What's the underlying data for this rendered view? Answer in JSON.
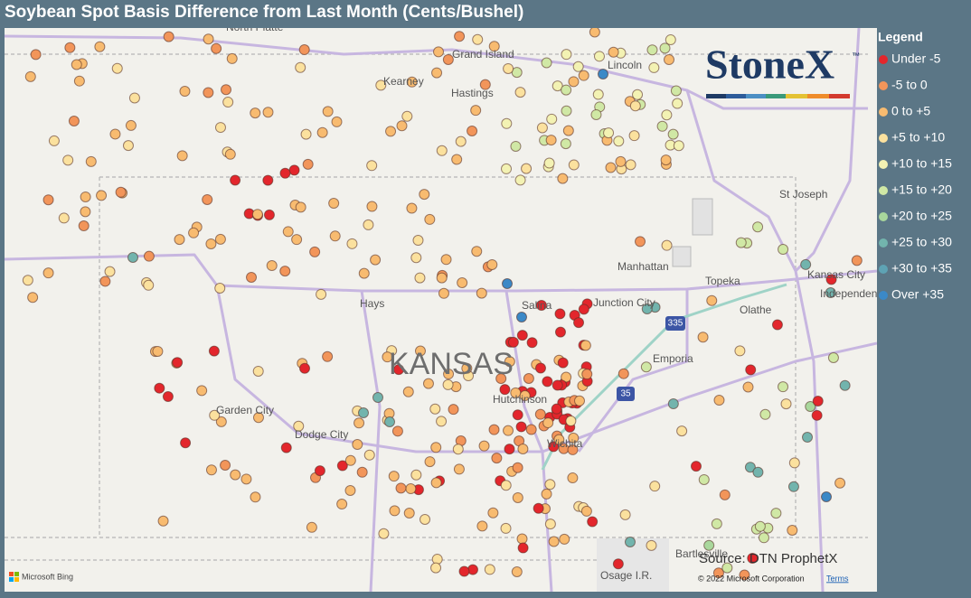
{
  "header": {
    "title": "Soybean Spot Basis Difference from Last Month (Cents/Bushel)"
  },
  "legend": {
    "title": "Legend",
    "items": [
      {
        "label": "Under -5",
        "color": "#e3262c"
      },
      {
        "label": "-5 to 0",
        "color": "#f2955a"
      },
      {
        "label": "0 to +5",
        "color": "#f8bb70"
      },
      {
        "label": "+5 to +10",
        "color": "#fbe19e"
      },
      {
        "label": "+10 to +15",
        "color": "#f3f2b3"
      },
      {
        "label": "+15 to +20",
        "color": "#d0e8a5"
      },
      {
        "label": "+20 to +25",
        "color": "#a9d79c"
      },
      {
        "label": "+25 to +30",
        "color": "#72b4ad"
      },
      {
        "label": "+30 to +35",
        "color": "#5ea3b4"
      },
      {
        "label": "Over +35",
        "color": "#3b89c7"
      }
    ]
  },
  "map": {
    "places": [
      "North Platte",
      "Grand Island",
      "Kearney",
      "Hastings",
      "Lincoln",
      "St Joseph",
      "Manhattan",
      "Topeka",
      "Kansas City",
      "Independence",
      "Hays",
      "Salina",
      "Junction City",
      "Olathe",
      "Emporia",
      "Garden City",
      "Dodge City",
      "Hutchinson",
      "Wichita",
      "Bartlesville",
      "Osage I.R."
    ],
    "state_label": "KANSAS",
    "shields": [
      "335",
      "35"
    ],
    "logo": {
      "name": "StoneX",
      "mark": "™"
    },
    "source": "Source: DTN ProphetX",
    "attribution": {
      "provider": "Microsoft Bing",
      "copyright": "© 2022 Microsoft Corporation",
      "terms": "Terms"
    }
  }
}
